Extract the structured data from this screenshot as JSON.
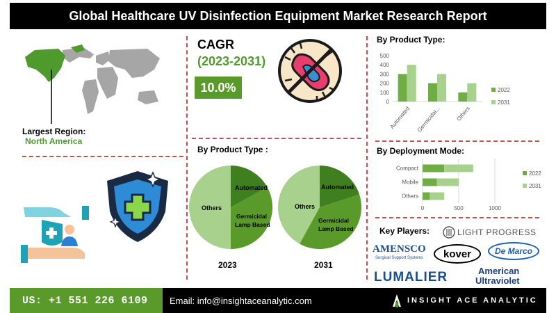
{
  "title": "Global Healthcare UV Disinfection Equipment Market Research Report",
  "map": {
    "largest_region_label": "Largest Region:",
    "largest_region": "North America"
  },
  "cagr": {
    "label": "CAGR",
    "period": "(2023-2031)",
    "value": "10.0%"
  },
  "pies": {
    "title": "By Product Type :",
    "year_2023": "2023",
    "year_2031": "2031",
    "labels": {
      "automated": "Automated",
      "germicidal": "Germicidal Lamp Based",
      "germicidal_l1": "Germicidal",
      "germicidal_l2": "Lamp Based",
      "others": "Others"
    }
  },
  "product_chart_title": "By Product Type:",
  "deployment_chart_title": "By Deployment Mode:",
  "key_players": {
    "title": "Key Players:",
    "logos": [
      "LIGHT PROGRESS",
      "AMENSCO",
      "Surgical Support Systems",
      "kover",
      "De Marco",
      "LUMALIER",
      "American",
      "Ultraviolet"
    ]
  },
  "footer": {
    "phone": "US: +1 551 226 6109",
    "email": "Email: info@insightaceanalytic.com",
    "brand": "INSIGHT ACE ANALYTIC"
  },
  "colors": {
    "dark_green": "#5a9a2a",
    "light_green": "#a9d18e",
    "mid_green": "#70ad47",
    "accent_red": "#c0504d"
  },
  "chart_data": [
    {
      "type": "pie",
      "title": "2023",
      "slices": [
        {
          "label": "Automated",
          "value": 17
        },
        {
          "label": "Germicidal Lamp Based",
          "value": 33
        },
        {
          "label": "Others",
          "value": 50
        }
      ]
    },
    {
      "type": "pie",
      "title": "2031",
      "slices": [
        {
          "label": "Automated",
          "value": 20
        },
        {
          "label": "Germicidal Lamp Based",
          "value": 38
        },
        {
          "label": "Others",
          "value": 42
        }
      ]
    },
    {
      "type": "bar",
      "title": "By Product Type:",
      "categories": [
        "Automated",
        "Germicidal...",
        "Others"
      ],
      "series": [
        {
          "name": "2022",
          "values": [
            300,
            200,
            100
          ]
        },
        {
          "name": "2031",
          "values": [
            400,
            300,
            200
          ]
        }
      ],
      "ylim": [
        0,
        500
      ],
      "yticks": [
        0,
        100,
        200,
        300,
        400,
        500
      ],
      "legend": "right"
    },
    {
      "type": "bar",
      "orientation": "horizontal",
      "stacked": true,
      "title": "By Deployment Mode:",
      "categories": [
        "Compact",
        "Mobile",
        "Others"
      ],
      "series": [
        {
          "name": "2022",
          "values": [
            300,
            200,
            100
          ]
        },
        {
          "name": "2031",
          "values": [
            400,
            300,
            200
          ]
        }
      ],
      "xlim": [
        0,
        1000
      ],
      "xticks": [
        0,
        500,
        1000
      ],
      "legend": "right"
    }
  ]
}
